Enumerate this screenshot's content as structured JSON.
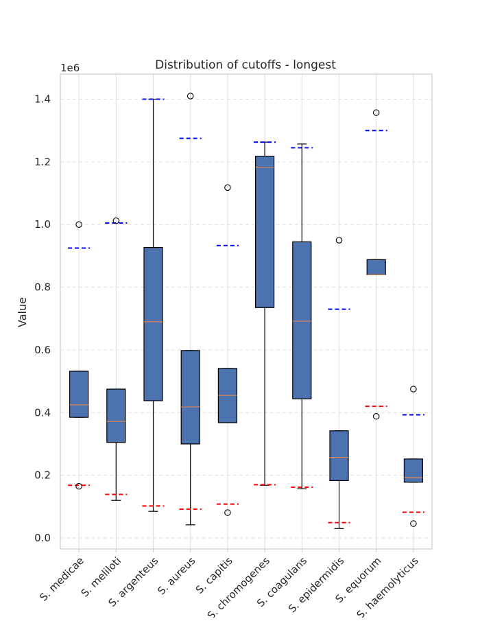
{
  "chart_data": {
    "type": "box",
    "title": "Distribution of cutoffs - longest",
    "xlabel": "",
    "ylabel": "Value",
    "y_offset_label": "1e6",
    "ylim": [
      -35000,
      1480000
    ],
    "yticks": [
      0.0,
      0.2,
      0.4,
      0.6,
      0.8,
      1.0,
      1.2,
      1.4
    ],
    "y_multiplier": 1000000,
    "grid": true,
    "box_color": "#4c72b0",
    "median_color": "#dd8452",
    "lower_ref_color": "#ff0000",
    "upper_ref_color": "#0000ff",
    "categories": [
      "S. medicae",
      "S. meliloti",
      "S. argenteus",
      "S. aureus",
      "S. capitis",
      "S. chromogenes",
      "S. coagulans",
      "S. epidermidis",
      "S. equorum",
      "S. haemolyticus"
    ],
    "boxes": [
      {
        "whislo": 385000,
        "q1": 385000,
        "med": 425000,
        "q3": 532000,
        "whishi": 532000,
        "fliers": [
          1000000,
          165000
        ],
        "lower_ref": 168000,
        "upper_ref": 925000
      },
      {
        "whislo": 120000,
        "q1": 305000,
        "med": 372000,
        "q3": 475000,
        "whishi": 475000,
        "fliers": [
          1012000
        ],
        "lower_ref": 139000,
        "upper_ref": 1005000
      },
      {
        "whislo": 85000,
        "q1": 438000,
        "med": 690000,
        "q3": 927000,
        "whishi": 1400000,
        "fliers": [],
        "lower_ref": 102000,
        "upper_ref": 1400000
      },
      {
        "whislo": 42000,
        "q1": 300000,
        "med": 418000,
        "q3": 598000,
        "whishi": 598000,
        "fliers": [
          1410000
        ],
        "lower_ref": 92000,
        "upper_ref": 1275000
      },
      {
        "whislo": 368000,
        "q1": 368000,
        "med": 455000,
        "q3": 541000,
        "whishi": 541000,
        "fliers": [
          1118000,
          81000
        ],
        "lower_ref": 108000,
        "upper_ref": 933000
      },
      {
        "whislo": 168000,
        "q1": 735000,
        "med": 1183000,
        "q3": 1218000,
        "whishi": 1263000,
        "fliers": [],
        "lower_ref": 170000,
        "upper_ref": 1263000
      },
      {
        "whislo": 157000,
        "q1": 444000,
        "med": 692000,
        "q3": 945000,
        "whishi": 1257000,
        "fliers": [],
        "lower_ref": 162000,
        "upper_ref": 1245000
      },
      {
        "whislo": 30000,
        "q1": 183000,
        "med": 257000,
        "q3": 342000,
        "whishi": 342000,
        "fliers": [
          950000
        ],
        "lower_ref": 49000,
        "upper_ref": 730000
      },
      {
        "whislo": 840000,
        "q1": 840000,
        "med": 840000,
        "q3": 888000,
        "whishi": 888000,
        "fliers": [
          1357000,
          388000
        ],
        "lower_ref": 420000,
        "upper_ref": 1300000
      },
      {
        "whislo": 178000,
        "q1": 178000,
        "med": 193000,
        "q3": 252000,
        "whishi": 252000,
        "fliers": [
          475000,
          46000
        ],
        "lower_ref": 82000,
        "upper_ref": 393000
      }
    ]
  }
}
